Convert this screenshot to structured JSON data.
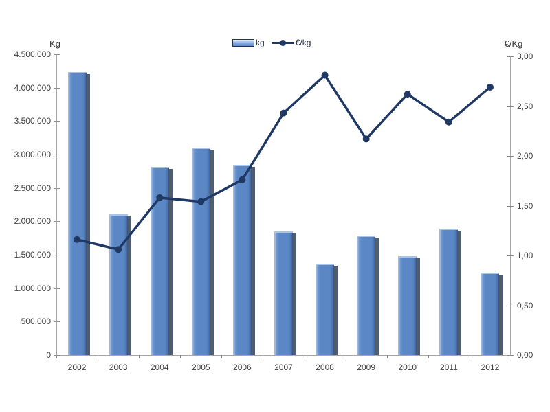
{
  "chart_data": {
    "type": "combo-bar-line",
    "categories": [
      "2002",
      "2003",
      "2004",
      "2005",
      "2006",
      "2007",
      "2008",
      "2009",
      "2010",
      "2011",
      "2012"
    ],
    "series": [
      {
        "name": "kg",
        "type": "bar",
        "axis": "left",
        "values": [
          4230000,
          2110000,
          2820000,
          3100000,
          2850000,
          1850000,
          1370000,
          1790000,
          1480000,
          1890000,
          1230000
        ]
      },
      {
        "name": "€/kg",
        "type": "line",
        "axis": "right",
        "values": [
          1.16,
          1.06,
          1.58,
          1.54,
          1.76,
          2.43,
          2.81,
          2.17,
          2.62,
          2.34,
          2.69
        ]
      }
    ],
    "left_axis": {
      "title": "Kg",
      "min": 0,
      "max": 4500000,
      "tick_interval": 500000,
      "tick_labels_top_to_bottom": [
        "4.500.000",
        "4.000.000",
        "3.500.000",
        "3.000.000",
        "2.500.000",
        "2.000.000",
        "1.500.000",
        "1.000.000",
        "500.000",
        "0"
      ]
    },
    "right_axis": {
      "title": "€/Kg",
      "min": 0,
      "max": 3,
      "tick_interval": 0.5,
      "tick_labels_bottom_to_top": [
        "0,00",
        "0,50",
        "1,00",
        "1,50",
        "2,00",
        "2,50",
        "3,00"
      ]
    },
    "legend": {
      "position": "top-center",
      "entries": [
        "kg",
        "€/kg"
      ]
    },
    "grid": false,
    "title": "",
    "xlabel": "",
    "ylabel_left": "Kg",
    "ylabel_right": "€/Kg"
  },
  "colors": {
    "bar_fill": "#5b87c5",
    "bar_highlight": "#aac4e7",
    "bar_shadow": "#2a384f",
    "line": "#1f3864",
    "axis_line": "#a6a6a6",
    "text": "#3f3f3f",
    "background": "#ffffff"
  }
}
